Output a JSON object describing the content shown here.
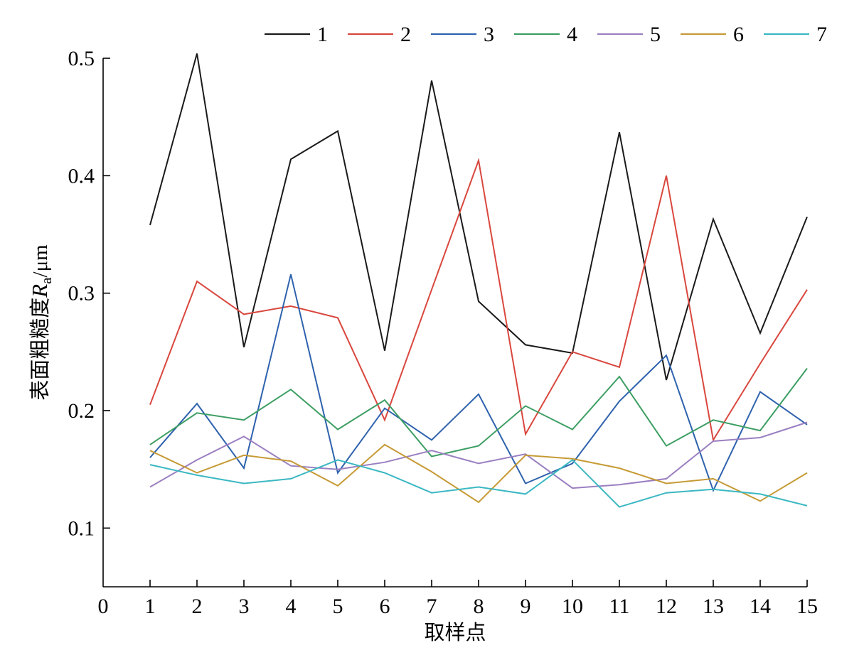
{
  "chart_data": {
    "type": "line",
    "title": "",
    "xlabel": "取样点",
    "ylabel": {
      "prefix": "表面粗糙度",
      "symbol": "R",
      "subscript": "a",
      "unit": "/μm"
    },
    "xlim": [
      0,
      15
    ],
    "ylim": [
      0.05,
      0.5
    ],
    "x_ticks": [
      "0",
      "1",
      "2",
      "3",
      "4",
      "5",
      "6",
      "7",
      "8",
      "9",
      "10",
      "11",
      "12",
      "13",
      "14",
      "15"
    ],
    "y_ticks": [
      "0.1",
      "0.2",
      "0.3",
      "0.4",
      "0.5"
    ],
    "grid": false,
    "legend_position": "top",
    "x": [
      1,
      2,
      3,
      4,
      5,
      6,
      7,
      8,
      9,
      10,
      11,
      12,
      13,
      14,
      15
    ],
    "series": [
      {
        "name": "1",
        "color": "#1a1a1a",
        "values": [
          0.358,
          0.504,
          0.254,
          0.414,
          0.438,
          0.251,
          0.481,
          0.293,
          0.256,
          0.249,
          0.437,
          0.226,
          0.363,
          0.266,
          0.365
        ]
      },
      {
        "name": "2",
        "color": "#d9473e",
        "values": [
          0.205,
          0.31,
          0.282,
          0.289,
          0.279,
          0.192,
          0.303,
          0.413,
          0.18,
          0.25,
          0.237,
          0.4,
          0.175,
          0.24,
          0.303
        ]
      },
      {
        "name": "3",
        "color": "#2e62ad",
        "values": [
          0.16,
          0.206,
          0.151,
          0.316,
          0.147,
          0.202,
          0.175,
          0.214,
          0.138,
          0.155,
          0.208,
          0.247,
          0.132,
          0.216,
          0.188
        ]
      },
      {
        "name": "4",
        "color": "#3d9e63",
        "values": [
          0.171,
          0.198,
          0.192,
          0.218,
          0.184,
          0.209,
          0.161,
          0.17,
          0.204,
          0.184,
          0.229,
          0.17,
          0.192,
          0.183,
          0.236
        ]
      },
      {
        "name": "5",
        "color": "#9a7fc1",
        "values": [
          0.135,
          0.158,
          0.178,
          0.153,
          0.15,
          0.156,
          0.166,
          0.155,
          0.163,
          0.134,
          0.137,
          0.142,
          0.174,
          0.177,
          0.19
        ]
      },
      {
        "name": "6",
        "color": "#c69a35",
        "values": [
          0.166,
          0.147,
          0.162,
          0.157,
          0.136,
          0.171,
          0.148,
          0.122,
          0.162,
          0.159,
          0.151,
          0.138,
          0.142,
          0.123,
          0.147
        ]
      },
      {
        "name": "7",
        "color": "#3bb8c3",
        "values": [
          0.154,
          0.145,
          0.138,
          0.142,
          0.158,
          0.147,
          0.13,
          0.135,
          0.129,
          0.158,
          0.118,
          0.13,
          0.133,
          0.129,
          0.119
        ]
      }
    ]
  }
}
